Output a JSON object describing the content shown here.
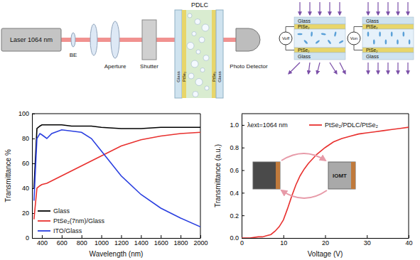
{
  "diagram": {
    "laser": "Laser 1064 nm",
    "beam_expander": "BE",
    "aperture": "Aperture",
    "shutter": "Shutter",
    "pdlc": "PDLC",
    "cell_layers": [
      "Glass",
      "PtSe₂",
      "PtSe₂",
      "Glass"
    ],
    "detector": "Photo Detector",
    "states": [
      {
        "voltage": "Voff",
        "layers": [
          "Glass",
          "PtSe₂",
          "PtSe₂",
          "Glass"
        ]
      },
      {
        "voltage": "Von",
        "layers": [
          "Glass",
          "PtSe₂",
          "PtSe₂",
          "Glass"
        ]
      }
    ]
  },
  "chart_data": [
    {
      "type": "line",
      "x_label": "Wavelength (nm)",
      "y_label": "Transmittance %",
      "x": [
        320,
        350,
        380,
        400,
        450,
        500,
        600,
        700,
        800,
        900,
        1000,
        1200,
        1400,
        1600,
        1800,
        2000
      ],
      "series": [
        {
          "name": "Glass",
          "color": "#000000",
          "values": [
            40,
            88,
            90,
            91,
            91,
            91,
            91,
            90,
            90,
            90,
            89,
            88,
            88,
            89,
            89,
            89
          ]
        },
        {
          "name": "PtSe₂(7nm)/Glass",
          "color": "#e8312f",
          "values": [
            15,
            40,
            42,
            43,
            44,
            46,
            50,
            54,
            58,
            62,
            66,
            74,
            79,
            82,
            84,
            85
          ]
        },
        {
          "name": "ITO/Glass",
          "color": "#2a3fe0",
          "values": [
            30,
            80,
            84,
            83,
            80,
            84,
            87,
            86,
            85,
            80,
            70,
            50,
            35,
            24,
            16,
            9
          ]
        }
      ],
      "xlim": [
        300,
        2000
      ],
      "xticks": [
        400,
        600,
        800,
        1000,
        1200,
        1400,
        1600,
        1800,
        2000
      ],
      "ylim": [
        0,
        100
      ],
      "yticks": [
        0,
        20,
        40,
        60,
        80,
        100
      ],
      "legend": "lower left"
    },
    {
      "type": "line",
      "x_label": "Voltage (V)",
      "y_label": "Transmittance (a.u.)",
      "annotations": [
        {
          "text": "λext=1064 nm"
        },
        {
          "text": "IOMT"
        }
      ],
      "x": [
        0,
        2,
        4,
        5,
        6,
        7,
        8,
        9,
        10,
        11,
        12,
        13,
        14,
        15,
        16,
        18,
        20,
        22,
        24,
        26,
        28,
        30,
        32,
        34,
        36,
        38,
        40
      ],
      "series": [
        {
          "name": "PtSe₂/PDLC/PtSe₂",
          "color": "#e8312f",
          "values": [
            0.0,
            0.0,
            0.01,
            0.01,
            0.02,
            0.03,
            0.06,
            0.1,
            0.16,
            0.26,
            0.37,
            0.47,
            0.55,
            0.61,
            0.66,
            0.74,
            0.8,
            0.85,
            0.88,
            0.9,
            0.92,
            0.93,
            0.94,
            0.95,
            0.96,
            0.97,
            0.98
          ]
        }
      ],
      "xlim": [
        0,
        40
      ],
      "xticks": [
        0,
        10,
        20,
        30,
        40
      ],
      "ylim": [
        0,
        1.1
      ],
      "yticks": [
        {
          "value": 0,
          "label": "0.0"
        },
        {
          "value": 0.2,
          "label": "0.2"
        },
        {
          "value": 0.4,
          "label": "0.4"
        },
        {
          "value": 0.6,
          "label": "0.6"
        },
        {
          "value": 0.8,
          "label": "0.8"
        },
        {
          "value": 1,
          "label": "1.0"
        }
      ],
      "legend": "upper right"
    }
  ]
}
